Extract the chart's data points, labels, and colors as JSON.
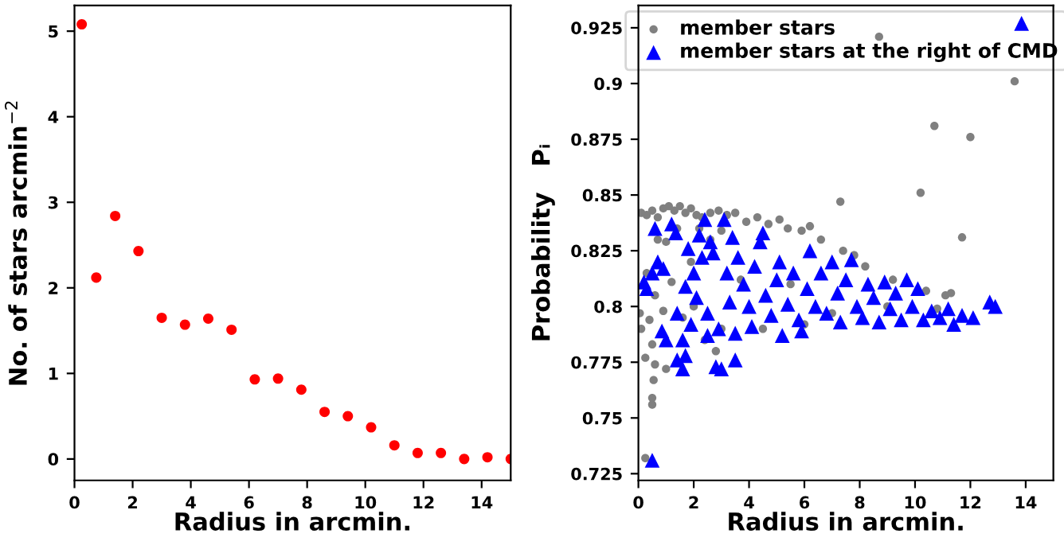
{
  "chart_data": [
    {
      "type": "scatter",
      "xlabel": "Radius in arcmin.",
      "ylabel": "No. of stars arcmin$^{−2}$",
      "xlim": [
        0,
        15
      ],
      "ylim": [
        -0.25,
        5.3
      ],
      "xticks": [
        0,
        2,
        4,
        6,
        8,
        10,
        12,
        14
      ],
      "yticks": [
        0,
        1,
        2,
        3,
        4,
        5
      ],
      "grid": false,
      "legend": false,
      "marker": "circle",
      "series": [
        {
          "color": "#ff0000",
          "x": [
            0.25,
            0.75,
            1.4,
            2.2,
            3.0,
            3.8,
            4.6,
            5.4,
            6.2,
            7.0,
            7.8,
            8.6,
            9.4,
            10.2,
            11.0,
            11.8,
            12.6,
            13.4,
            14.2,
            15.0
          ],
          "values": [
            5.08,
            2.12,
            2.84,
            2.43,
            1.65,
            1.57,
            1.64,
            1.51,
            0.93,
            0.94,
            0.81,
            0.55,
            0.5,
            0.37,
            0.16,
            0.07,
            0.07,
            0.0,
            0.02,
            0.0
          ]
        }
      ]
    },
    {
      "type": "scatter",
      "xlabel": "Radius in arcmin.",
      "ylabel": "Probability   Pᵢ",
      "xlim": [
        0,
        15
      ],
      "ylim": [
        0.722,
        0.935
      ],
      "xticks": [
        0,
        2,
        4,
        6,
        8,
        10,
        12,
        14
      ],
      "yticks": [
        0.725,
        0.75,
        0.775,
        0.8,
        0.825,
        0.85,
        0.875,
        0.9,
        0.925
      ],
      "grid": false,
      "legend": "top",
      "series": [
        {
          "name": "member stars",
          "color": "#808080",
          "marker": "circle",
          "x": [
            0.1,
            0.3,
            0.5,
            0.7,
            0.9,
            1.1,
            1.3,
            1.5,
            1.7,
            1.9,
            2.1,
            2.3,
            2.6,
            2.9,
            3.2,
            3.5,
            3.9,
            4.3,
            4.7,
            5.1,
            5.4,
            5.9,
            6.2,
            6.6,
            7.3,
            7.4,
            7.8,
            8.2,
            8.7,
            9.2,
            10.2,
            10.4,
            10.7,
            11.1,
            11.3,
            11.7,
            12.0,
            13.6,
            0.05,
            0.1,
            0.25,
            0.4,
            0.5,
            0.55,
            0.6,
            0.5,
            0.5,
            0.25,
            1.0,
            0.9,
            0.6,
            1.2,
            1.0,
            2.4,
            2.8,
            3.0,
            2.0,
            1.6,
            4.5,
            6.0,
            7.0,
            9.0,
            10.8,
            0.3,
            1.9,
            2.6,
            3.7,
            5.5,
            0.7,
            1.4,
            2.2,
            3.0
          ],
          "values": [
            0.842,
            0.841,
            0.843,
            0.84,
            0.844,
            0.845,
            0.843,
            0.845,
            0.842,
            0.844,
            0.841,
            0.84,
            0.842,
            0.843,
            0.841,
            0.842,
            0.838,
            0.84,
            0.837,
            0.839,
            0.835,
            0.834,
            0.836,
            0.83,
            0.847,
            0.825,
            0.823,
            0.818,
            0.921,
            0.812,
            0.851,
            0.807,
            0.881,
            0.805,
            0.806,
            0.831,
            0.876,
            0.901,
            0.797,
            0.79,
            0.777,
            0.794,
            0.783,
            0.767,
            0.774,
            0.759,
            0.756,
            0.732,
            0.772,
            0.798,
            0.805,
            0.811,
            0.829,
            0.785,
            0.78,
            0.79,
            0.8,
            0.795,
            0.79,
            0.792,
            0.797,
            0.8,
            0.799,
            0.815,
            0.82,
            0.83,
            0.812,
            0.81,
            0.83,
            0.835,
            0.835,
            0.834
          ]
        },
        {
          "name": "member stars at the right of CMD",
          "color": "#0000ff",
          "marker": "triangle",
          "x": [
            0.2,
            0.3,
            0.5,
            0.6,
            0.7,
            0.9,
            0.5,
            0.85,
            1.0,
            1.2,
            1.35,
            1.4,
            1.4,
            1.6,
            1.6,
            1.7,
            1.7,
            1.8,
            1.9,
            2.0,
            2.1,
            2.2,
            2.3,
            2.4,
            2.5,
            2.5,
            2.6,
            2.7,
            2.8,
            2.9,
            3.0,
            3.1,
            3.2,
            3.3,
            3.4,
            3.5,
            3.5,
            3.6,
            3.8,
            4.0,
            4.1,
            4.2,
            4.4,
            4.5,
            4.6,
            4.8,
            5.0,
            5.1,
            5.2,
            5.4,
            5.6,
            5.8,
            5.9,
            6.1,
            6.2,
            6.4,
            6.6,
            6.8,
            7.0,
            7.2,
            7.3,
            7.5,
            7.7,
            7.9,
            8.1,
            8.3,
            8.5,
            8.7,
            8.9,
            9.1,
            9.3,
            9.5,
            9.7,
            9.9,
            10.1,
            10.3,
            10.6,
            10.9,
            11.2,
            11.4,
            11.7,
            12.1,
            12.7,
            12.9,
            13.85
          ],
          "values": [
            0.811,
            0.808,
            0.815,
            0.835,
            0.82,
            0.817,
            0.731,
            0.789,
            0.785,
            0.837,
            0.833,
            0.797,
            0.776,
            0.785,
            0.772,
            0.778,
            0.809,
            0.826,
            0.792,
            0.815,
            0.804,
            0.832,
            0.822,
            0.839,
            0.797,
            0.787,
            0.829,
            0.824,
            0.773,
            0.79,
            0.772,
            0.839,
            0.815,
            0.802,
            0.831,
            0.776,
            0.788,
            0.822,
            0.81,
            0.8,
            0.791,
            0.818,
            0.829,
            0.833,
            0.805,
            0.796,
            0.812,
            0.82,
            0.787,
            0.801,
            0.815,
            0.794,
            0.789,
            0.808,
            0.825,
            0.8,
            0.815,
            0.797,
            0.82,
            0.806,
            0.793,
            0.812,
            0.821,
            0.8,
            0.795,
            0.81,
            0.804,
            0.793,
            0.811,
            0.799,
            0.806,
            0.794,
            0.812,
            0.8,
            0.808,
            0.794,
            0.798,
            0.795,
            0.799,
            0.792,
            0.796,
            0.795,
            0.802,
            0.8,
            0.927
          ]
        }
      ]
    }
  ]
}
